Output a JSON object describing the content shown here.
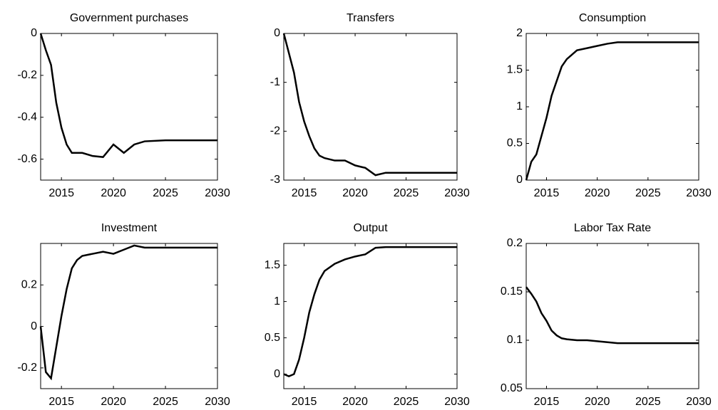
{
  "chart_data": [
    {
      "type": "line",
      "title": "Government purchases",
      "color": "#000000",
      "x": [
        2013,
        2013.5,
        2014,
        2014.5,
        2015,
        2015.5,
        2016,
        2016.5,
        2017,
        2018,
        2019,
        2020,
        2021,
        2022,
        2023,
        2025,
        2030
      ],
      "values": [
        0,
        -0.08,
        -0.15,
        -0.33,
        -0.45,
        -0.53,
        -0.57,
        -0.57,
        -0.57,
        -0.585,
        -0.59,
        -0.53,
        -0.57,
        -0.53,
        -0.515,
        -0.51,
        -0.51
      ],
      "xlim": [
        2013,
        2030
      ],
      "xticks": [
        2015,
        2020,
        2025,
        2030
      ],
      "ylim": [
        -0.7,
        0
      ],
      "yticks": [
        0,
        -0.2,
        -0.4,
        -0.6
      ]
    },
    {
      "type": "line",
      "title": "Transfers",
      "color": "#000000",
      "x": [
        2013,
        2013.5,
        2014,
        2014.5,
        2015,
        2015.5,
        2016,
        2016.5,
        2017,
        2018,
        2019,
        2020,
        2021,
        2022,
        2023,
        2025,
        2030
      ],
      "values": [
        0,
        -0.4,
        -0.8,
        -1.4,
        -1.8,
        -2.1,
        -2.35,
        -2.5,
        -2.55,
        -2.6,
        -2.6,
        -2.7,
        -2.75,
        -2.9,
        -2.85,
        -2.85,
        -2.85
      ],
      "xlim": [
        2013,
        2030
      ],
      "xticks": [
        2015,
        2020,
        2025,
        2030
      ],
      "ylim": [
        -3,
        0
      ],
      "yticks": [
        0,
        -1,
        -2,
        -3
      ]
    },
    {
      "type": "line",
      "title": "Consumption",
      "color": "#000000",
      "x": [
        2013,
        2013.5,
        2014,
        2014.5,
        2015,
        2015.5,
        2016,
        2016.5,
        2017,
        2018,
        2019,
        2020,
        2021,
        2022,
        2023,
        2025,
        2030
      ],
      "values": [
        0,
        0.25,
        0.35,
        0.6,
        0.85,
        1.15,
        1.35,
        1.55,
        1.65,
        1.77,
        1.8,
        1.83,
        1.86,
        1.88,
        1.88,
        1.88,
        1.88
      ],
      "xlim": [
        2013,
        2030
      ],
      "xticks": [
        2015,
        2020,
        2025,
        2030
      ],
      "ylim": [
        0,
        2
      ],
      "yticks": [
        0,
        0.5,
        1,
        1.5,
        2
      ]
    },
    {
      "type": "line",
      "title": "Investment",
      "color": "#000000",
      "x": [
        2013,
        2013.5,
        2014,
        2014.5,
        2015,
        2015.5,
        2016,
        2016.5,
        2017,
        2018,
        2019,
        2020,
        2021,
        2022,
        2023,
        2025,
        2030
      ],
      "values": [
        0,
        -0.22,
        -0.25,
        -0.1,
        0.05,
        0.18,
        0.28,
        0.32,
        0.34,
        0.35,
        0.36,
        0.35,
        0.37,
        0.39,
        0.38,
        0.38,
        0.38
      ],
      "xlim": [
        2013,
        2030
      ],
      "xticks": [
        2015,
        2020,
        2025,
        2030
      ],
      "ylim": [
        -0.3,
        0.4
      ],
      "yticks": [
        -0.2,
        0,
        0.2
      ]
    },
    {
      "type": "line",
      "title": "Output",
      "color": "#000000",
      "x": [
        2013,
        2013.5,
        2014,
        2014.5,
        2015,
        2015.5,
        2016,
        2016.5,
        2017,
        2018,
        2019,
        2020,
        2021,
        2022,
        2023,
        2025,
        2030
      ],
      "values": [
        0,
        -0.03,
        0,
        0.2,
        0.5,
        0.85,
        1.1,
        1.3,
        1.42,
        1.52,
        1.58,
        1.62,
        1.65,
        1.74,
        1.75,
        1.75,
        1.75
      ],
      "xlim": [
        2013,
        2030
      ],
      "xticks": [
        2015,
        2020,
        2025,
        2030
      ],
      "ylim": [
        -0.2,
        1.8
      ],
      "yticks": [
        0,
        0.5,
        1,
        1.5
      ]
    },
    {
      "type": "line",
      "title": "Labor Tax Rate",
      "color": "#000000",
      "x": [
        2013,
        2013.5,
        2014,
        2014.5,
        2015,
        2015.5,
        2016,
        2016.5,
        2017,
        2018,
        2019,
        2020,
        2021,
        2022,
        2023,
        2025,
        2030
      ],
      "values": [
        0.155,
        0.148,
        0.14,
        0.128,
        0.12,
        0.11,
        0.105,
        0.102,
        0.101,
        0.1,
        0.1,
        0.099,
        0.098,
        0.097,
        0.097,
        0.097,
        0.097
      ],
      "xlim": [
        2013,
        2030
      ],
      "xticks": [
        2015,
        2020,
        2025,
        2030
      ],
      "ylim": [
        0.05,
        0.2
      ],
      "yticks": [
        0.05,
        0.1,
        0.15,
        0.2
      ]
    }
  ]
}
